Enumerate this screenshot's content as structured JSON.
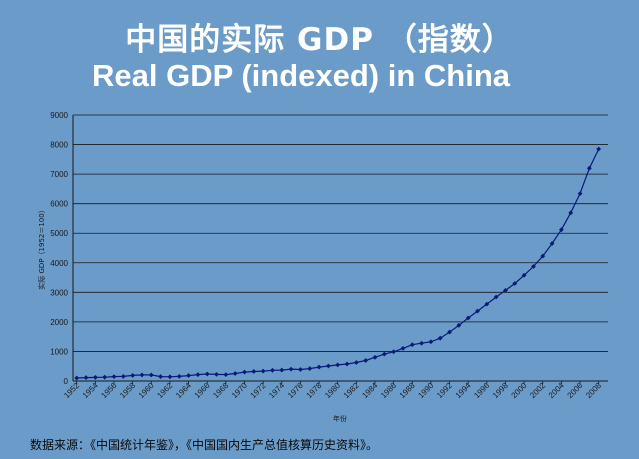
{
  "page": {
    "title_cn": "中国的实际 GDP （指数）",
    "title_en": "Real GDP (indexed) in China",
    "source": "数据来源：《中国统计年鉴》，《中国国内生产总值核算历史资料》。"
  },
  "colors": {
    "background": "#6b9bc8",
    "series": "#0a1a7a",
    "gridline": "#1a1a1a",
    "title_text": "#ffffff"
  },
  "chart_data": {
    "type": "line",
    "title": "",
    "xlabel": "年份",
    "ylabel": "实际 GDP（1952＝100）",
    "ylim": [
      0,
      9000
    ],
    "y_ticks": [
      "0",
      "1000",
      "2000",
      "3000",
      "4000",
      "5000",
      "6000",
      "7000",
      "8000",
      "9000"
    ],
    "x_tick_labels": [
      "1952",
      "1954",
      "1956",
      "1958",
      "1960",
      "1962",
      "1964",
      "1966",
      "1968",
      "1970",
      "1972",
      "1974",
      "1976",
      "1978",
      "1980",
      "1982",
      "1984",
      "1986",
      "1988",
      "1990",
      "1992",
      "1994",
      "1996",
      "1998",
      "2000",
      "2002",
      "2004",
      "2006",
      "2008"
    ],
    "grid": "horizontal",
    "legend": "none",
    "x": [
      1952,
      1953,
      1954,
      1955,
      1956,
      1957,
      1958,
      1959,
      1960,
      1961,
      1962,
      1963,
      1964,
      1965,
      1966,
      1967,
      1968,
      1969,
      1970,
      1971,
      1972,
      1973,
      1974,
      1975,
      1976,
      1977,
      1978,
      1979,
      1980,
      1981,
      1982,
      1983,
      1984,
      1985,
      1986,
      1987,
      1988,
      1989,
      1990,
      1991,
      1992,
      1993,
      1994,
      1995,
      1996,
      1997,
      1998,
      1999,
      2000,
      2001,
      2002,
      2003,
      2004,
      2005,
      2006,
      2007,
      2008
    ],
    "series": [
      {
        "values": [
          100,
          116,
          121,
          129,
          148,
          155,
          188,
          205,
          205,
          150,
          142,
          156,
          184,
          215,
          238,
          224,
          215,
          253,
          302,
          323,
          335,
          362,
          370,
          402,
          389,
          420,
          471,
          507,
          546,
          575,
          627,
          695,
          801,
          909,
          989,
          1104,
          1228,
          1278,
          1327,
          1449,
          1655,
          1885,
          2132,
          2365,
          2602,
          2843,
          3066,
          3300,
          3577,
          3874,
          4227,
          4651,
          5120,
          5690,
          6340,
          7200,
          7850
        ]
      }
    ]
  }
}
